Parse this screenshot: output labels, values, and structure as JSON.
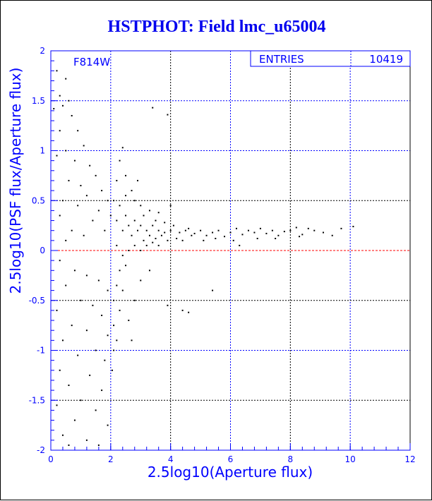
{
  "chart_data": {
    "type": "scatter",
    "title": "HSTPHOT: Field lmc_u65004",
    "xlabel": "2.5log10(Aperture flux)",
    "ylabel": "2.5log10(PSF flux/Aperture flux)",
    "xlim": [
      0,
      12
    ],
    "ylim": [
      -2,
      2
    ],
    "xticks": [
      "0",
      "2",
      "4",
      "6",
      "8",
      "10",
      "12"
    ],
    "yticks": [
      "-2",
      "-1.5",
      "-1",
      "-0.5",
      "0",
      "0.5",
      "1",
      "1.5",
      "2"
    ],
    "grid": true,
    "annotation": "F814W",
    "stats": {
      "label": "ENTRIES",
      "value": "10419"
    },
    "reference_line": {
      "y": 0,
      "color": "#ff0000"
    },
    "colors": {
      "axis": "#0000ff",
      "points": "#000000",
      "title": "#0000ee"
    },
    "points": [
      [
        0.2,
        1.8
      ],
      [
        0.5,
        1.72
      ],
      [
        0.3,
        1.55
      ],
      [
        0.6,
        1.5
      ],
      [
        0.4,
        1.45
      ],
      [
        0.1,
        1.42
      ],
      [
        0.7,
        1.35
      ],
      [
        0.9,
        1.2
      ],
      [
        0.3,
        1.2
      ],
      [
        1.1,
        1.05
      ],
      [
        0.5,
        1.0
      ],
      [
        0.2,
        0.95
      ],
      [
        0.8,
        0.9
      ],
      [
        1.3,
        0.85
      ],
      [
        1.5,
        0.75
      ],
      [
        0.6,
        0.7
      ],
      [
        1.0,
        0.65
      ],
      [
        1.7,
        0.6
      ],
      [
        1.2,
        0.55
      ],
      [
        0.4,
        0.5
      ],
      [
        1.9,
        0.5
      ],
      [
        0.9,
        0.45
      ],
      [
        1.6,
        0.4
      ],
      [
        0.3,
        0.35
      ],
      [
        1.4,
        0.3
      ],
      [
        2.0,
        0.35
      ],
      [
        0.7,
        0.2
      ],
      [
        1.1,
        0.15
      ],
      [
        1.8,
        0.2
      ],
      [
        0.5,
        0.1
      ],
      [
        0.3,
        -0.1
      ],
      [
        0.8,
        -0.2
      ],
      [
        1.2,
        -0.25
      ],
      [
        1.6,
        -0.3
      ],
      [
        0.5,
        -0.35
      ],
      [
        1.9,
        -0.4
      ],
      [
        1.0,
        -0.5
      ],
      [
        1.4,
        -0.55
      ],
      [
        0.2,
        -0.6
      ],
      [
        1.7,
        -0.65
      ],
      [
        0.7,
        -0.75
      ],
      [
        1.2,
        -0.8
      ],
      [
        1.9,
        -0.85
      ],
      [
        0.4,
        -0.9
      ],
      [
        1.5,
        -1.0
      ],
      [
        0.9,
        -1.05
      ],
      [
        1.8,
        -1.1
      ],
      [
        0.3,
        -1.2
      ],
      [
        1.3,
        -1.25
      ],
      [
        0.6,
        -1.35
      ],
      [
        1.7,
        -1.4
      ],
      [
        1.0,
        -1.5
      ],
      [
        0.2,
        -1.55
      ],
      [
        1.5,
        -1.6
      ],
      [
        0.8,
        -1.7
      ],
      [
        1.9,
        -1.75
      ],
      [
        0.4,
        -1.85
      ],
      [
        1.2,
        -1.9
      ],
      [
        0.6,
        -1.95
      ],
      [
        1.6,
        -1.95
      ],
      [
        2.1,
        0.5
      ],
      [
        2.3,
        0.45
      ],
      [
        2.2,
        0.3
      ],
      [
        2.5,
        0.35
      ],
      [
        2.4,
        0.2
      ],
      [
        2.6,
        0.25
      ],
      [
        2.8,
        0.3
      ],
      [
        2.7,
        0.15
      ],
      [
        2.9,
        0.2
      ],
      [
        3.0,
        0.25
      ],
      [
        3.1,
        0.1
      ],
      [
        3.2,
        0.2
      ],
      [
        3.3,
        0.15
      ],
      [
        3.4,
        0.25
      ],
      [
        3.5,
        0.12
      ],
      [
        3.6,
        0.2
      ],
      [
        3.7,
        0.15
      ],
      [
        3.8,
        0.18
      ],
      [
        3.9,
        0.1
      ],
      [
        4.0,
        0.2
      ],
      [
        2.2,
        0.05
      ],
      [
        2.4,
        -0.05
      ],
      [
        2.6,
        0.0
      ],
      [
        2.8,
        0.05
      ],
      [
        3.0,
        0.0
      ],
      [
        3.2,
        0.05
      ],
      [
        3.4,
        0.08
      ],
      [
        3.6,
        0.05
      ],
      [
        2.3,
        -0.2
      ],
      [
        2.5,
        -0.15
      ],
      [
        2.2,
        -0.35
      ],
      [
        2.4,
        -0.4
      ],
      [
        2.1,
        -0.5
      ],
      [
        2.3,
        -0.6
      ],
      [
        2.1,
        -0.75
      ],
      [
        2.2,
        -0.9
      ],
      [
        2.1,
        -1.0
      ],
      [
        2.05,
        -1.2
      ],
      [
        2.5,
        0.55
      ],
      [
        2.8,
        0.5
      ],
      [
        3.0,
        0.45
      ],
      [
        3.3,
        0.4
      ],
      [
        3.6,
        0.38
      ],
      [
        2.2,
        0.7
      ],
      [
        2.5,
        0.75
      ],
      [
        2.3,
        0.9
      ],
      [
        2.7,
        0.6
      ],
      [
        3.1,
        0.35
      ],
      [
        3.5,
        0.3
      ],
      [
        3.8,
        0.28
      ],
      [
        4.1,
        0.25
      ],
      [
        4.3,
        0.18
      ],
      [
        4.5,
        0.2
      ],
      [
        4.7,
        0.15
      ],
      [
        4.2,
        0.12
      ],
      [
        4.4,
        0.1
      ],
      [
        4.6,
        0.22
      ],
      [
        4.8,
        0.17
      ],
      [
        5.0,
        0.2
      ],
      [
        5.2,
        0.15
      ],
      [
        5.4,
        0.18
      ],
      [
        5.6,
        0.2
      ],
      [
        5.8,
        0.14
      ],
      [
        6.0,
        0.18
      ],
      [
        6.2,
        0.22
      ],
      [
        6.4,
        0.16
      ],
      [
        6.6,
        0.2
      ],
      [
        6.8,
        0.18
      ],
      [
        7.0,
        0.22
      ],
      [
        7.2,
        0.17
      ],
      [
        7.4,
        0.2
      ],
      [
        7.6,
        0.15
      ],
      [
        7.8,
        0.19
      ],
      [
        8.0,
        0.2
      ],
      [
        8.2,
        0.23
      ],
      [
        8.4,
        0.16
      ],
      [
        8.6,
        0.22
      ],
      [
        8.8,
        0.2
      ],
      [
        9.1,
        0.18
      ],
      [
        9.4,
        0.15
      ],
      [
        9.7,
        0.22
      ],
      [
        10.1,
        0.24
      ],
      [
        5.1,
        0.1
      ],
      [
        5.5,
        0.12
      ],
      [
        6.1,
        0.1
      ],
      [
        6.9,
        0.12
      ],
      [
        7.5,
        0.12
      ],
      [
        8.3,
        0.14
      ],
      [
        3.4,
        1.43
      ],
      [
        3.9,
        1.36
      ],
      [
        2.4,
        1.03
      ],
      [
        4.4,
        -0.6
      ],
      [
        4.6,
        -0.62
      ],
      [
        3.9,
        -0.55
      ],
      [
        5.4,
        -0.4
      ],
      [
        2.6,
        -0.7
      ],
      [
        2.8,
        -0.5
      ],
      [
        3.0,
        -0.3
      ],
      [
        3.3,
        -0.2
      ],
      [
        2.7,
        -0.9
      ],
      [
        2.9,
        0.7
      ],
      [
        4.0,
        0.45
      ],
      [
        6.3,
        0.05
      ]
    ]
  }
}
